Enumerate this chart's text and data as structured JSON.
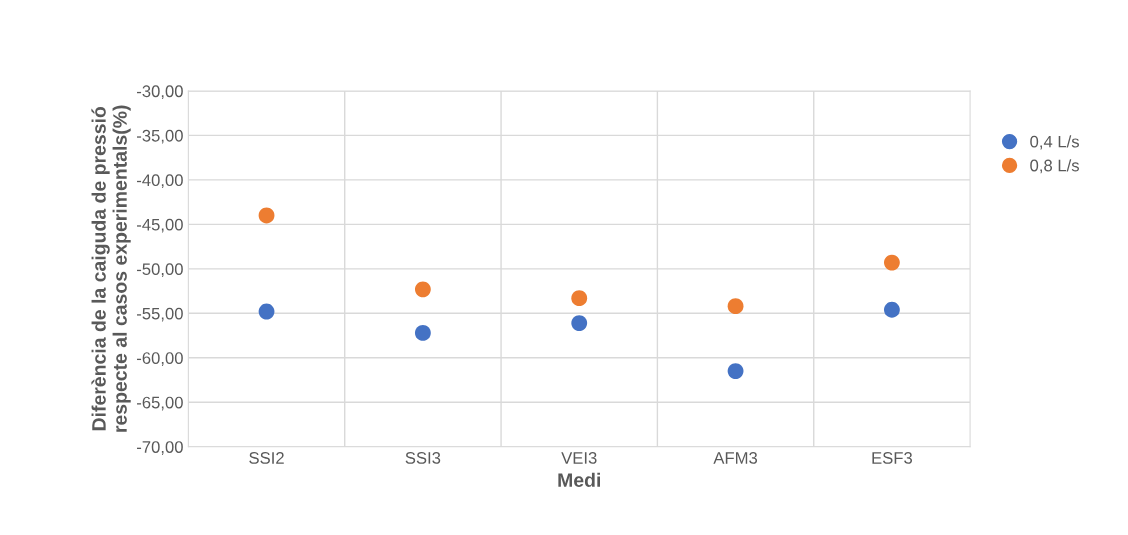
{
  "chart_data": {
    "type": "scatter",
    "xlabel": "Medi",
    "ylabel": "Diferència de la caiguda de pressió\nrespecte al casos experimentals(%)",
    "categories": [
      "SSI2",
      "SSI3",
      "VEI3",
      "AFM3",
      "ESF3"
    ],
    "series": [
      {
        "name": "0,4 L/s",
        "color": "#4472c4",
        "values": [
          -54.8,
          -57.2,
          -56.1,
          -61.5,
          -54.6
        ]
      },
      {
        "name": "0,8 L/s",
        "color": "#ed7d31",
        "values": [
          -44.0,
          -52.3,
          -53.3,
          -54.2,
          -49.3
        ]
      }
    ],
    "ylim": [
      -70,
      -30
    ],
    "yticks": [
      {
        "value": -70,
        "label": "-70,00"
      },
      {
        "value": -65,
        "label": "-65,00"
      },
      {
        "value": -60,
        "label": "-60,00"
      },
      {
        "value": -55,
        "label": "-55,00"
      },
      {
        "value": -50,
        "label": "-50,00"
      },
      {
        "value": -45,
        "label": "-45,00"
      },
      {
        "value": -40,
        "label": "-40,00"
      },
      {
        "value": -35,
        "label": "-35,00"
      },
      {
        "value": -30,
        "label": "-30,00"
      }
    ],
    "grid": true,
    "legend": "right",
    "marker": "circle"
  }
}
